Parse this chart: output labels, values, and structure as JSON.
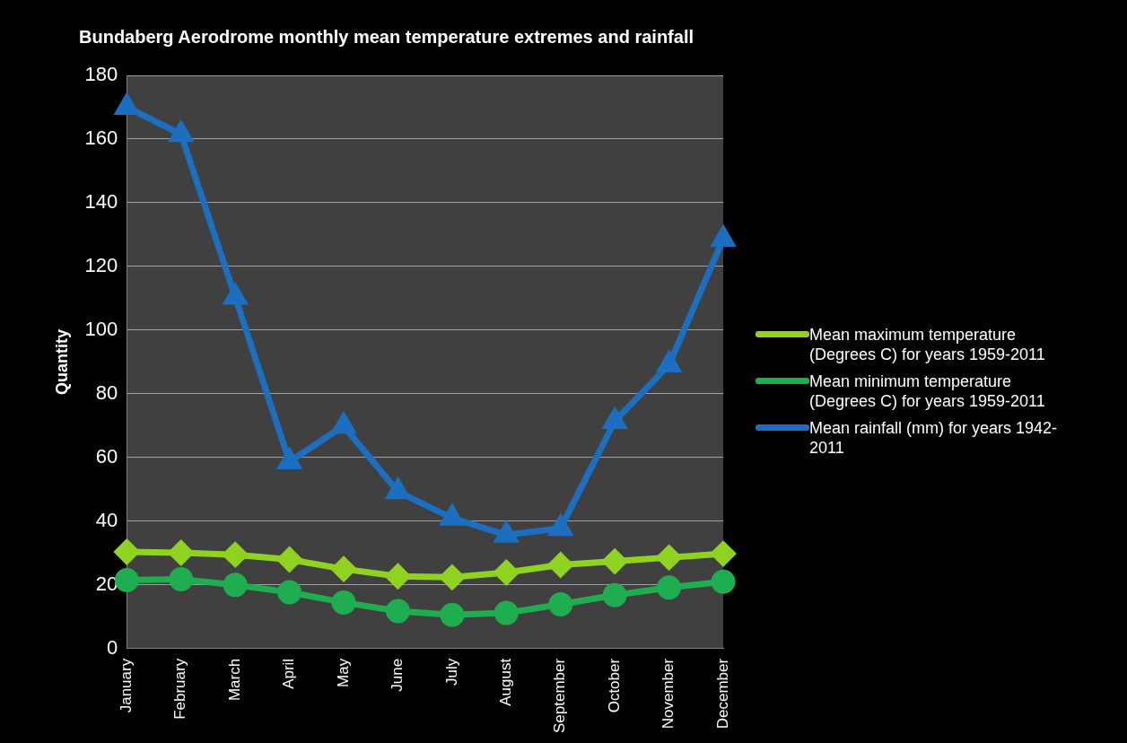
{
  "chart_data": {
    "type": "line",
    "title": "Bundaberg Aerodrome monthly mean temperature extremes and rainfall",
    "ylabel": "Quantity",
    "categories": [
      "January",
      "February",
      "March",
      "April",
      "May",
      "June",
      "July",
      "August",
      "September",
      "October",
      "November",
      "December"
    ],
    "series": [
      {
        "name": "Mean maximum temperature (Degrees C) for years 1959-2011",
        "color": "#8fd320",
        "marker": "diamond",
        "values": [
          30.4,
          30.1,
          29.5,
          28,
          25,
          22.7,
          22.4,
          23.9,
          26.3,
          27.4,
          28.6,
          29.8
        ]
      },
      {
        "name": "Mean minimum temperature (Degrees C) for years 1959-2011",
        "color": "#1fae4f",
        "marker": "circle",
        "values": [
          21.5,
          21.8,
          20,
          17.7,
          14.5,
          11.8,
          10.6,
          11.2,
          13.9,
          16.8,
          19.2,
          21
        ]
      },
      {
        "name": "Mean rainfall (mm) for years 1942-2011",
        "color": "#1c6fc0",
        "marker": "triangle",
        "values": [
          170,
          161.5,
          110.4,
          58.7,
          69.9,
          49.3,
          41,
          35.7,
          37.8,
          71.4,
          89.1,
          128.6
        ]
      }
    ],
    "ylim": [
      0,
      180
    ],
    "yticks": [
      0,
      20,
      40,
      60,
      80,
      100,
      120,
      140,
      160,
      180
    ],
    "grid": "y",
    "legend": "right",
    "line_style": "solid"
  }
}
